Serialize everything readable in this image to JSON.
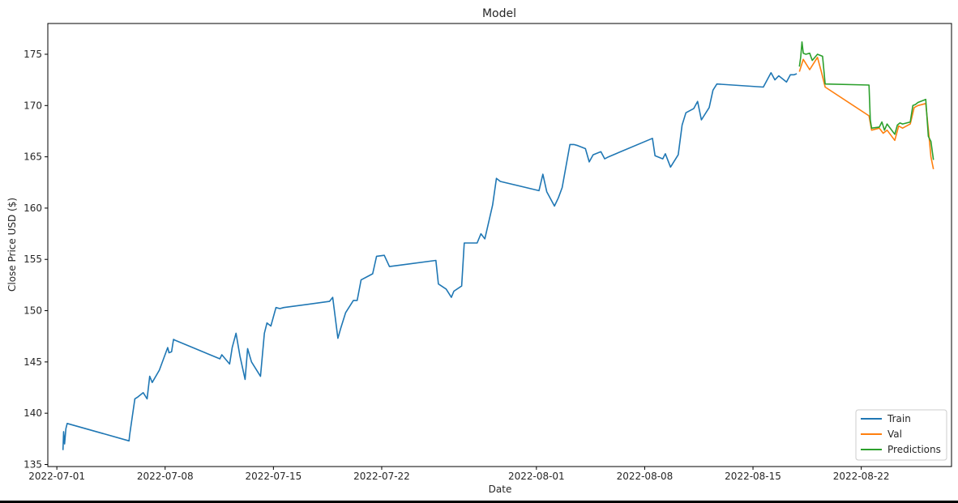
{
  "chart_data": {
    "type": "line",
    "title": "Model",
    "xlabel": "Date",
    "ylabel": "Close Price USD ($)",
    "x_axis_type": "date",
    "xlim": [
      "2022-06-30T10:00",
      "2022-08-27T20:00"
    ],
    "ylim": [
      134.8,
      178.0
    ],
    "x_ticks": [
      "2022-07-01",
      "2022-07-08",
      "2022-07-15",
      "2022-07-22",
      "2022-08-01",
      "2022-08-08",
      "2022-08-15",
      "2022-08-22"
    ],
    "y_ticks": [
      135,
      140,
      145,
      150,
      155,
      160,
      165,
      170,
      175
    ],
    "grid": false,
    "legend_position": "lower-right",
    "series": [
      {
        "name": "Train",
        "color": "#1f77b4",
        "x": [
          "2022-07-01T09:30",
          "2022-07-01T10:30",
          "2022-07-01T12:00",
          "2022-07-01T14:00",
          "2022-07-01T16:00",
          "2022-07-05T16:00",
          "2022-07-05T17:00",
          "2022-07-06T01:00",
          "2022-07-06T06:00",
          "2022-07-06T14:00",
          "2022-07-06T20:00",
          "2022-07-07T00:00",
          "2022-07-07T04:00",
          "2022-07-07T15:00",
          "2022-07-08T04:00",
          "2022-07-08T06:00",
          "2022-07-08T10:00",
          "2022-07-08T13:00",
          "2022-07-08T16:00",
          "2022-07-11T13:00",
          "2022-07-11T16:00",
          "2022-07-12T04:00",
          "2022-07-12T08:00",
          "2022-07-12T14:00",
          "2022-07-12T20:00",
          "2022-07-13T04:00",
          "2022-07-13T08:00",
          "2022-07-13T14:00",
          "2022-07-14T04:00",
          "2022-07-14T10:00",
          "2022-07-14T14:00",
          "2022-07-14T20:00",
          "2022-07-15T04:00",
          "2022-07-15T10:00",
          "2022-07-15T16:00",
          "2022-07-18T15:00",
          "2022-07-18T20:00",
          "2022-07-19T04:00",
          "2022-07-19T08:00",
          "2022-07-19T16:00",
          "2022-07-20T04:00",
          "2022-07-20T10:00",
          "2022-07-20T16:00",
          "2022-07-21T04:00",
          "2022-07-21T10:00",
          "2022-07-21T16:00",
          "2022-07-22T04:00",
          "2022-07-22T12:00",
          "2022-07-25T12:00",
          "2022-07-25T16:00",
          "2022-07-26T04:00",
          "2022-07-26T12:00",
          "2022-07-26T16:00",
          "2022-07-27T04:00",
          "2022-07-27T08:00",
          "2022-07-27T16:00",
          "2022-07-28T04:00",
          "2022-07-28T10:00",
          "2022-07-28T16:00",
          "2022-07-29T04:00",
          "2022-07-29T10:00",
          "2022-07-29T16:00",
          "2022-08-01T04:00",
          "2022-08-01T10:00",
          "2022-08-01T16:00",
          "2022-08-02T04:00",
          "2022-08-02T10:00",
          "2022-08-02T16:00",
          "2022-08-03T04:00",
          "2022-08-03T10:00",
          "2022-08-03T16:00",
          "2022-08-04T04:00",
          "2022-08-04T10:00",
          "2022-08-04T16:00",
          "2022-08-05T04:00",
          "2022-08-05T10:00",
          "2022-08-05T16:00",
          "2022-08-08T12:00",
          "2022-08-08T16:00",
          "2022-08-09T04:00",
          "2022-08-09T08:00",
          "2022-08-09T16:00",
          "2022-08-10T04:00",
          "2022-08-10T10:00",
          "2022-08-10T16:00",
          "2022-08-11T04:00",
          "2022-08-11T10:00",
          "2022-08-11T16:00",
          "2022-08-12T04:00",
          "2022-08-12T10:00",
          "2022-08-12T16:00",
          "2022-08-15T16:00",
          "2022-08-16T04:00",
          "2022-08-16T10:00",
          "2022-08-16T16:00",
          "2022-08-17T04:00",
          "2022-08-17T10:00",
          "2022-08-17T16:00",
          "2022-08-17T20:00"
        ],
        "y": [
          136.4,
          138.2,
          137.0,
          138.5,
          139.0,
          137.3,
          137.9,
          141.4,
          141.6,
          142.0,
          141.4,
          143.6,
          143.0,
          144.2,
          146.4,
          145.9,
          146.0,
          147.2,
          147.1,
          145.3,
          145.7,
          144.8,
          146.4,
          147.8,
          145.6,
          143.3,
          146.3,
          145.0,
          143.6,
          147.8,
          148.8,
          148.5,
          150.3,
          150.2,
          150.3,
          150.9,
          151.3,
          147.3,
          148.2,
          149.8,
          151.0,
          151.0,
          153.0,
          153.4,
          153.6,
          155.3,
          155.4,
          154.3,
          154.9,
          152.6,
          152.1,
          151.3,
          151.9,
          152.4,
          156.6,
          156.6,
          156.6,
          157.5,
          157.0,
          160.3,
          162.9,
          162.6,
          161.7,
          163.3,
          161.6,
          160.2,
          161.0,
          162.0,
          166.2,
          166.2,
          166.1,
          165.8,
          164.5,
          165.2,
          165.5,
          164.8,
          165.0,
          166.8,
          165.1,
          164.8,
          165.3,
          164.0,
          165.2,
          168.1,
          169.3,
          169.7,
          170.4,
          168.6,
          169.8,
          171.5,
          172.1,
          171.8,
          173.2,
          172.5,
          172.9,
          172.3,
          173.0,
          173.0,
          173.1
        ]
      },
      {
        "name": "Val",
        "color": "#ff7f0e",
        "x": [
          "2022-08-18T00:00",
          "2022-08-18T06:00",
          "2022-08-18T16:00",
          "2022-08-19T04:00",
          "2022-08-19T10:00",
          "2022-08-19T16:00",
          "2022-08-22T12:00",
          "2022-08-22T16:00",
          "2022-08-23T04:00",
          "2022-08-23T10:00",
          "2022-08-23T16:00",
          "2022-08-24T04:00",
          "2022-08-24T10:00",
          "2022-08-24T16:00",
          "2022-08-25T04:00",
          "2022-08-25T10:00",
          "2022-08-25T16:00",
          "2022-08-26T04:00",
          "2022-08-26T08:00",
          "2022-08-26T12:00",
          "2022-08-26T16:00"
        ],
        "y": [
          173.3,
          174.5,
          173.5,
          174.7,
          173.3,
          171.8,
          169.0,
          167.6,
          167.8,
          167.3,
          167.6,
          166.6,
          168.0,
          167.8,
          168.2,
          169.8,
          170.0,
          170.2,
          167.7,
          165.0,
          163.8
        ]
      },
      {
        "name": "Predictions",
        "color": "#2ca02c",
        "x": [
          "2022-08-18T00:00",
          "2022-08-18T02:00",
          "2022-08-18T04:00",
          "2022-08-18T06:00",
          "2022-08-18T10:00",
          "2022-08-18T16:00",
          "2022-08-18T20:00",
          "2022-08-19T04:00",
          "2022-08-19T08:00",
          "2022-08-19T12:00",
          "2022-08-19T16:00",
          "2022-08-22T12:00",
          "2022-08-22T14:00",
          "2022-08-22T16:00",
          "2022-08-23T04:00",
          "2022-08-23T08:00",
          "2022-08-23T12:00",
          "2022-08-23T16:00",
          "2022-08-24T04:00",
          "2022-08-24T08:00",
          "2022-08-24T12:00",
          "2022-08-24T16:00",
          "2022-08-25T04:00",
          "2022-08-25T08:00",
          "2022-08-25T12:00",
          "2022-08-25T16:00",
          "2022-08-26T04:00",
          "2022-08-26T08:00",
          "2022-08-26T12:00",
          "2022-08-26T16:00"
        ],
        "y": [
          173.8,
          174.7,
          176.2,
          175.1,
          175.0,
          175.1,
          174.4,
          175.0,
          174.9,
          174.8,
          172.1,
          172.0,
          168.6,
          167.8,
          167.9,
          168.4,
          167.6,
          168.2,
          167.2,
          168.1,
          168.3,
          168.2,
          168.4,
          170.0,
          170.1,
          170.3,
          170.6,
          167.0,
          166.5,
          164.7
        ]
      }
    ]
  }
}
